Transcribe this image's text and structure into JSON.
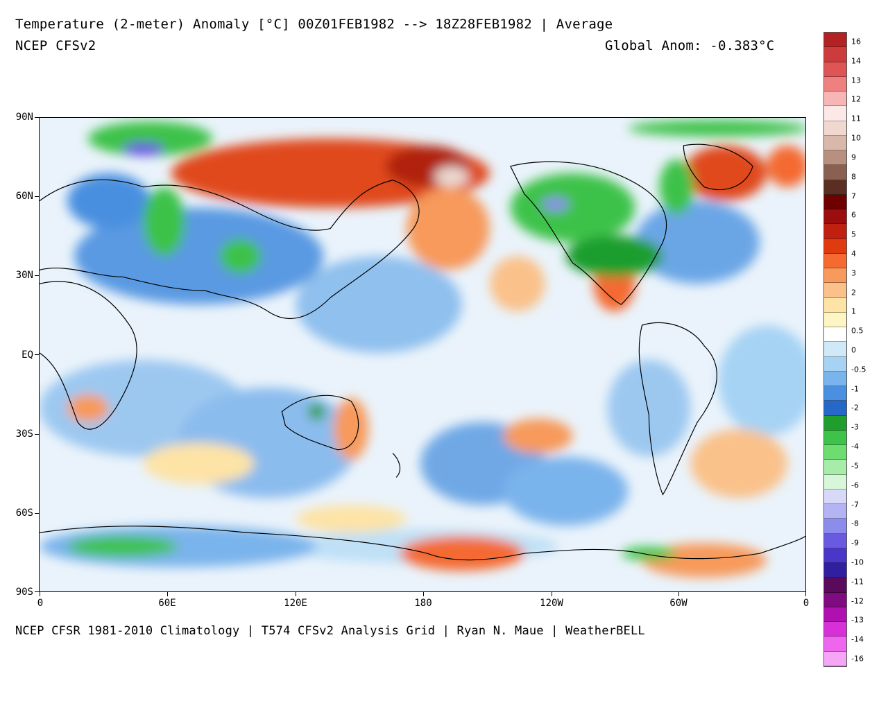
{
  "header": {
    "title": "Temperature (2-meter) Anomaly  [°C] 00Z01FEB1982 --> 18Z28FEB1982 | Average",
    "subtitle": "NCEP CFSv2",
    "global_anomaly": "Global Anom: -0.383°C"
  },
  "footer": {
    "credits": "NCEP CFSR 1981-2010 Climatology | T574 CFSv2 Analysis Grid | Ryan N. Maue | WeatherBELL"
  },
  "axes": {
    "lat_labels": [
      "90N",
      "60N",
      "30N",
      "EQ",
      "30S",
      "60S",
      "90S"
    ],
    "lon_labels": [
      "0",
      "60E",
      "120E",
      "180",
      "120W",
      "60W",
      "0"
    ]
  },
  "colorbar": {
    "labels": [
      "16",
      "14",
      "13",
      "12",
      "11",
      "10",
      "9",
      "8",
      "7",
      "6",
      "5",
      "4",
      "3",
      "2",
      "1",
      "0.5",
      "0",
      "-0.5",
      "-1",
      "-2",
      "-3",
      "-4",
      "-5",
      "-6",
      "-7",
      "-8",
      "-9",
      "-10",
      "-11",
      "-12",
      "-13",
      "-14",
      "-16"
    ],
    "colors": [
      "#b22222",
      "#cd3c3c",
      "#dd5555",
      "#ee8080",
      "#f7b5b5",
      "#fde8e8",
      "#f0d8d0",
      "#d8b8ab",
      "#b89080",
      "#8a6050",
      "#5a2e22",
      "#6e0000",
      "#9c0e0e",
      "#c02010",
      "#e03a10",
      "#f46a30",
      "#f79a5c",
      "#fac18a",
      "#fde3a6",
      "#fdf6c4",
      "#ffffff",
      "#cfe9f8",
      "#a6d3f4",
      "#7ab4ec",
      "#4a8fe0",
      "#2668c8",
      "#1f9e2e",
      "#3ec24a",
      "#6edc6e",
      "#a8ecaa",
      "#d8f6d8",
      "#d8d8f8",
      "#b4b4f4",
      "#8c8cec",
      "#6a5ae0",
      "#4a36c8",
      "#3020a0",
      "#5a0a5a",
      "#800a80",
      "#b010b0",
      "#d830d8",
      "#ee66ee",
      "#f7a6f7"
    ]
  }
}
